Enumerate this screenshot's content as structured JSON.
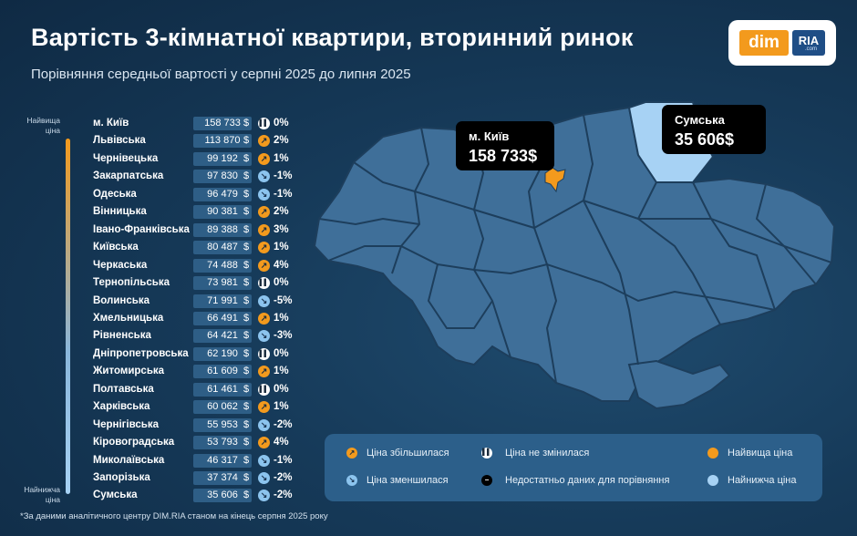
{
  "header": {
    "title": "Вартість 3-кімнатної квартири, вторинний ринок",
    "subtitle": "Порівняння середньої вартості у серпні 2025 до липня 2025"
  },
  "logo": {
    "dim": "dim",
    "ria": "RIA",
    "com": ".com"
  },
  "scale": {
    "top_label": "Найвища ціна",
    "bottom_label": "Найнижча ціна"
  },
  "currency": "$",
  "icons": {
    "up": "arrow-up-right-icon",
    "down": "arrow-down-right-icon",
    "same": "pause-icon",
    "nodata": "minus-icon"
  },
  "colors": {
    "accent_orange": "#f39a1d",
    "accent_light_blue": "#a7d2f4",
    "map_region": "#3f6f99",
    "region_border": "#1d3e5c"
  },
  "chart_data": {
    "type": "table",
    "title": "Вартість 3-кімнатної квартири, вторинний ринок",
    "columns": [
      "region",
      "price_usd",
      "change_pct"
    ],
    "rows": [
      {
        "region": "м. Київ",
        "price": "158 733",
        "trend": "same",
        "change": "0%"
      },
      {
        "region": "Львівська",
        "price": "113 870",
        "trend": "up",
        "change": "2%"
      },
      {
        "region": "Чернівецька",
        "price": "99 192",
        "trend": "up",
        "change": "1%"
      },
      {
        "region": "Закарпатська",
        "price": "97 830",
        "trend": "down",
        "change": "-1%"
      },
      {
        "region": "Одеська",
        "price": "96 479",
        "trend": "down",
        "change": "-1%"
      },
      {
        "region": "Вінницька",
        "price": "90 381",
        "trend": "up",
        "change": "2%"
      },
      {
        "region": "Івано-Франківська",
        "price": "89 388",
        "trend": "up",
        "change": "3%"
      },
      {
        "region": "Київська",
        "price": "80 487",
        "trend": "up",
        "change": "1%"
      },
      {
        "region": "Черкаська",
        "price": "74 488",
        "trend": "up",
        "change": "4%"
      },
      {
        "region": "Тернопільська",
        "price": "73 981",
        "trend": "same",
        "change": "0%"
      },
      {
        "region": "Волинська",
        "price": "71 991",
        "trend": "down",
        "change": "-5%"
      },
      {
        "region": "Хмельницька",
        "price": "66 491",
        "trend": "up",
        "change": "1%"
      },
      {
        "region": "Рівненська",
        "price": "64 421",
        "trend": "down",
        "change": "-3%"
      },
      {
        "region": "Дніпропетровська",
        "price": "62 190",
        "trend": "same",
        "change": "0%"
      },
      {
        "region": "Житомирська",
        "price": "61 609",
        "trend": "up",
        "change": "1%"
      },
      {
        "region": "Полтавська",
        "price": "61 461",
        "trend": "same",
        "change": "0%"
      },
      {
        "region": "Харківська",
        "price": "60 062",
        "trend": "up",
        "change": "1%"
      },
      {
        "region": "Чернігівська",
        "price": "55 953",
        "trend": "down",
        "change": "-2%"
      },
      {
        "region": "Кіровоградська",
        "price": "53 793",
        "trend": "up",
        "change": "4%"
      },
      {
        "region": "Миколаївська",
        "price": "46 317",
        "trend": "down",
        "change": "-1%"
      },
      {
        "region": "Запорізька",
        "price": "37 374",
        "trend": "down",
        "change": "-2%"
      },
      {
        "region": "Сумська",
        "price": "35 606",
        "trend": "down",
        "change": "-2%"
      }
    ]
  },
  "callouts": {
    "kyiv": {
      "name": "м. Київ",
      "value": "158 733$"
    },
    "sumy": {
      "name": "Сумська",
      "value": "35 606$"
    }
  },
  "legend": {
    "up": "Ціна збільшилася",
    "down": "Ціна зменшилася",
    "same": "Ціна не змінилася",
    "nodata": "Недостатньо даних для порівняння",
    "highest": "Найвища ціна",
    "lowest": "Найнижча ціна"
  },
  "footnote": "*За даними аналітичного центру DIM.RIA станом на кінець серпня 2025 року"
}
